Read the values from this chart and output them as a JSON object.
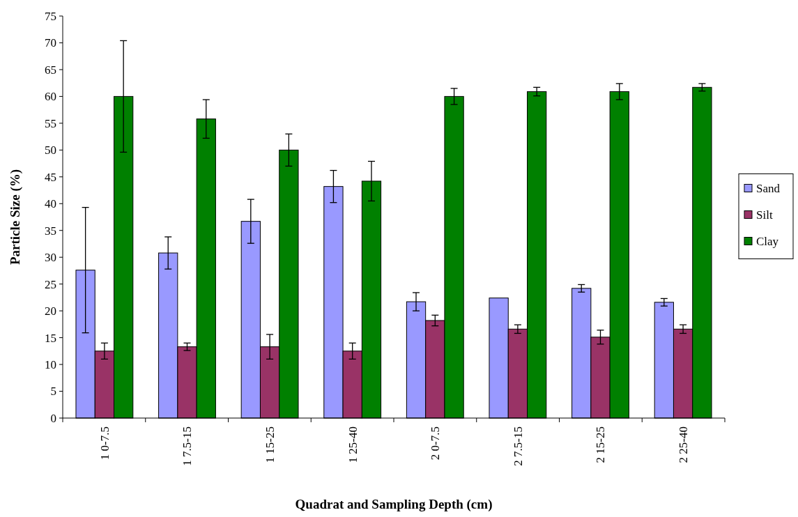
{
  "chart_data": {
    "type": "bar",
    "xlabel": "Quadrat and Sampling Depth (cm)",
    "ylabel": "Particle Size (%)",
    "categories": [
      "1 0-7.5",
      "1 7.5-15",
      "1 15-25",
      "1 25-40",
      "2 0-7.5",
      "2 7.5-15",
      "2 15-25",
      "2 25-40"
    ],
    "series": [
      {
        "name": "Sand",
        "color": "#9999ff",
        "values": [
          27.6,
          30.8,
          36.7,
          43.2,
          21.7,
          22.4,
          24.2,
          21.6
        ],
        "errors": [
          11.7,
          3,
          4.1,
          3,
          1.7,
          null,
          0.7,
          0.7
        ]
      },
      {
        "name": "Silt",
        "color": "#993366",
        "values": [
          12.5,
          13.3,
          13.3,
          12.5,
          18.2,
          16.6,
          15.1,
          16.6
        ],
        "errors": [
          1.5,
          0.7,
          2.3,
          1.5,
          1,
          0.8,
          1.3,
          0.8
        ]
      },
      {
        "name": "Clay",
        "color": "#008000",
        "values": [
          60,
          55.8,
          50,
          44.2,
          60,
          60.9,
          60.9,
          61.7
        ],
        "errors": [
          10.4,
          3.6,
          3,
          3.7,
          1.5,
          0.8,
          1.5,
          0.7
        ]
      }
    ],
    "ylim": [
      0,
      75
    ],
    "yticks": [
      0,
      5,
      10,
      15,
      20,
      25,
      30,
      35,
      40,
      45,
      50,
      55,
      60,
      65,
      70,
      75
    ],
    "grid": false,
    "legend": "right"
  }
}
